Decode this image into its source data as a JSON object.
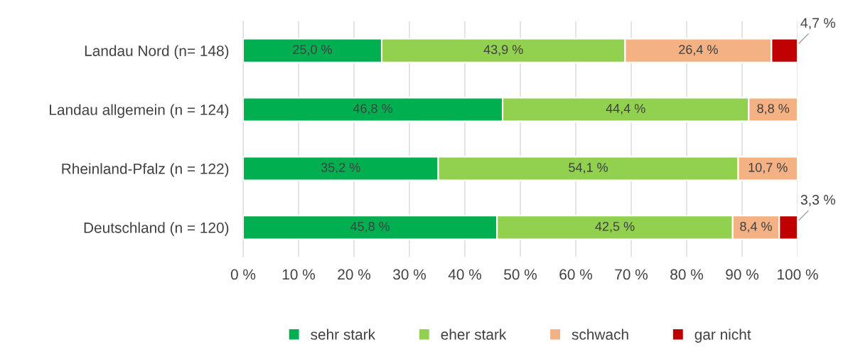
{
  "chart_data": {
    "type": "bar",
    "orientation": "horizontal",
    "stacked": true,
    "categories": [
      "Landau Nord (n= 148)",
      "Landau allgemein (n = 124)",
      "Rheinland-Pfalz (n = 122)",
      "Deutschland (n = 120)"
    ],
    "series": [
      {
        "name": "sehr stark",
        "color": "#00b050",
        "values": [
          25.0,
          46.8,
          35.2,
          45.8
        ],
        "value_labels": [
          "25,0 %",
          "46,8 %",
          "35,2 %",
          "45,8 %"
        ]
      },
      {
        "name": "eher stark",
        "color": "#92d050",
        "values": [
          43.9,
          44.4,
          54.1,
          42.5
        ],
        "value_labels": [
          "43,9 %",
          "44,4 %",
          "54,1 %",
          "42,5 %"
        ]
      },
      {
        "name": "schwach",
        "color": "#f4b183",
        "values": [
          26.4,
          8.8,
          10.7,
          8.4
        ],
        "value_labels": [
          "26,4 %",
          "8,8 %",
          "10,7 %",
          "8,4 %"
        ]
      },
      {
        "name": "gar nicht",
        "color": "#c00000",
        "values": [
          4.7,
          null,
          null,
          3.3
        ],
        "value_labels": [
          "4,7 %",
          null,
          null,
          "3,3 %"
        ]
      }
    ],
    "xlim": [
      0,
      100
    ],
    "xticks": [
      {
        "value": 0,
        "label": "0 %"
      },
      {
        "value": 10,
        "label": "10 %"
      },
      {
        "value": 20,
        "label": "20 %"
      },
      {
        "value": 30,
        "label": "30 %"
      },
      {
        "value": 40,
        "label": "40 %"
      },
      {
        "value": 50,
        "label": "50 %"
      },
      {
        "value": 60,
        "label": "60 %"
      },
      {
        "value": 70,
        "label": "70 %"
      },
      {
        "value": 80,
        "label": "80 %"
      },
      {
        "value": 90,
        "label": "90 %"
      },
      {
        "value": 100,
        "label": "100 %"
      }
    ],
    "grid": "x",
    "legend": "bottom"
  }
}
